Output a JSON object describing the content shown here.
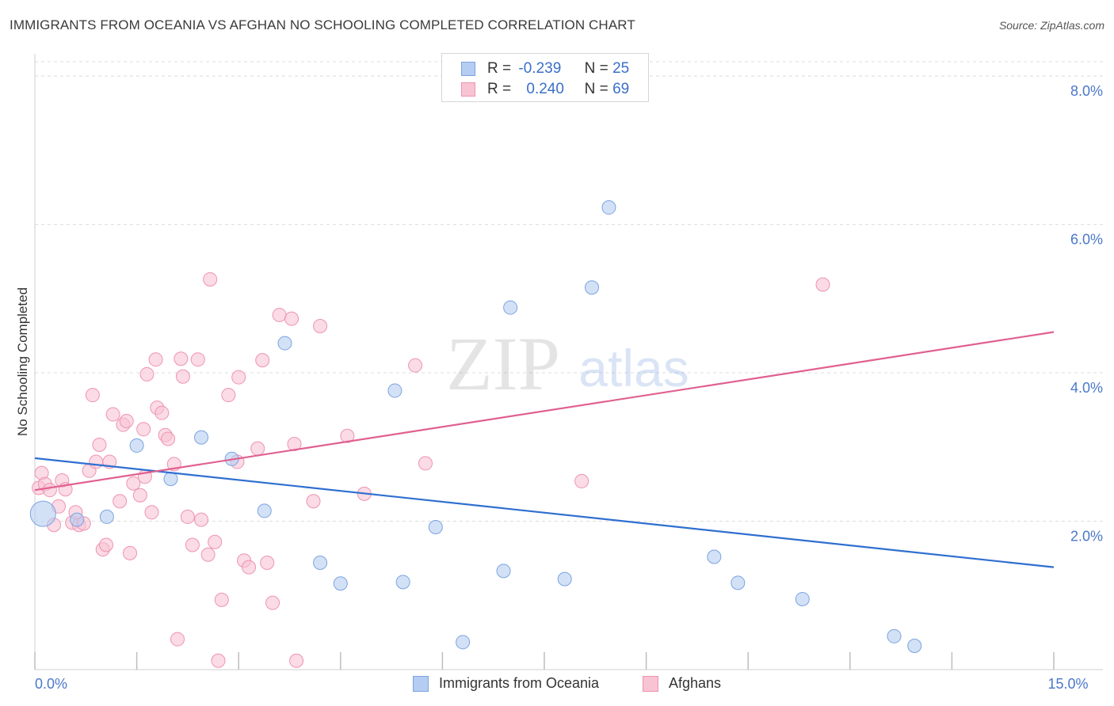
{
  "title": "IMMIGRANTS FROM OCEANIA VS AFGHAN NO SCHOOLING COMPLETED CORRELATION CHART",
  "source": "Source: ZipAtlas.com",
  "watermark": {
    "zip": "ZIP",
    "atlas": "atlas"
  },
  "colors": {
    "blue_fill": "#b5cdf2",
    "blue_stroke": "#7aa4e0",
    "blue_line": "#2f6fd0",
    "pink_fill": "#f8c3d3",
    "pink_stroke": "#ee94b0",
    "pink_line": "#e06090",
    "accent_text": "#3a6fc8"
  },
  "legend_top": [
    {
      "r_label": "R =",
      "r_value": "-0.239",
      "n_label": "N =",
      "n_value": "25"
    },
    {
      "r_label": "R =",
      "r_value": "0.240",
      "n_label": "N =",
      "n_value": "69"
    }
  ],
  "legend_bottom": [
    {
      "label": "Immigrants from Oceania"
    },
    {
      "label": "Afghans"
    }
  ],
  "chart_data": {
    "type": "scatter",
    "title": "IMMIGRANTS FROM OCEANIA VS AFGHAN NO SCHOOLING COMPLETED CORRELATION CHART",
    "xlabel": "",
    "ylabel": "No Schooling Completed",
    "xlim": [
      0,
      15
    ],
    "ylim": [
      0,
      8.3
    ],
    "x_ticks": [
      0,
      1.5,
      3,
      4.5,
      6,
      7.5,
      9,
      10.5,
      12,
      13.5,
      15
    ],
    "x_tick_labels": [
      {
        "x": 0,
        "label": "0.0%"
      },
      {
        "x": 15,
        "label": "15.0%"
      }
    ],
    "y_ticks": [
      {
        "y": 2,
        "label": "2.0%"
      },
      {
        "y": 4,
        "label": "4.0%"
      },
      {
        "y": 6,
        "label": "6.0%"
      },
      {
        "y": 8,
        "label": "8.0%"
      }
    ],
    "grid": "dashed-horizontal",
    "series": [
      {
        "name": "Immigrants from Oceania",
        "color": "blue",
        "trend": {
          "x": [
            0,
            15
          ],
          "y": [
            2.85,
            1.38
          ]
        },
        "points": [
          {
            "x": 0.12,
            "y": 2.1,
            "big": true
          },
          {
            "x": 0.62,
            "y": 2.02
          },
          {
            "x": 1.06,
            "y": 2.06
          },
          {
            "x": 1.5,
            "y": 3.02
          },
          {
            "x": 2.0,
            "y": 2.57
          },
          {
            "x": 2.45,
            "y": 3.13
          },
          {
            "x": 2.9,
            "y": 2.84
          },
          {
            "x": 3.38,
            "y": 2.14
          },
          {
            "x": 3.68,
            "y": 4.4
          },
          {
            "x": 4.2,
            "y": 1.44
          },
          {
            "x": 4.5,
            "y": 1.16
          },
          {
            "x": 5.3,
            "y": 3.76
          },
          {
            "x": 5.42,
            "y": 1.18
          },
          {
            "x": 5.9,
            "y": 1.92
          },
          {
            "x": 6.3,
            "y": 0.37
          },
          {
            "x": 6.9,
            "y": 1.33
          },
          {
            "x": 7.0,
            "y": 4.88
          },
          {
            "x": 7.8,
            "y": 1.22
          },
          {
            "x": 8.2,
            "y": 5.15
          },
          {
            "x": 8.45,
            "y": 6.23
          },
          {
            "x": 10.0,
            "y": 1.52
          },
          {
            "x": 10.35,
            "y": 1.17
          },
          {
            "x": 11.3,
            "y": 0.95
          },
          {
            "x": 12.65,
            "y": 0.45
          },
          {
            "x": 12.95,
            "y": 0.32
          }
        ]
      },
      {
        "name": "Afghans",
        "color": "pink",
        "trend": {
          "x": [
            0,
            15
          ],
          "y": [
            2.42,
            4.55
          ]
        },
        "points": [
          {
            "x": 0.06,
            "y": 2.45
          },
          {
            "x": 0.1,
            "y": 2.65
          },
          {
            "x": 0.15,
            "y": 2.5
          },
          {
            "x": 0.22,
            "y": 2.42
          },
          {
            "x": 0.28,
            "y": 1.95
          },
          {
            "x": 0.35,
            "y": 2.2
          },
          {
            "x": 0.4,
            "y": 2.55
          },
          {
            "x": 0.45,
            "y": 2.43
          },
          {
            "x": 0.55,
            "y": 1.98
          },
          {
            "x": 0.6,
            "y": 2.12
          },
          {
            "x": 0.65,
            "y": 1.95
          },
          {
            "x": 0.72,
            "y": 1.97
          },
          {
            "x": 0.8,
            "y": 2.68
          },
          {
            "x": 0.85,
            "y": 3.7
          },
          {
            "x": 0.9,
            "y": 2.8
          },
          {
            "x": 0.95,
            "y": 3.03
          },
          {
            "x": 1.0,
            "y": 1.62
          },
          {
            "x": 1.05,
            "y": 1.68
          },
          {
            "x": 1.1,
            "y": 2.8
          },
          {
            "x": 1.15,
            "y": 3.44
          },
          {
            "x": 1.25,
            "y": 2.27
          },
          {
            "x": 1.3,
            "y": 3.3
          },
          {
            "x": 1.35,
            "y": 3.35
          },
          {
            "x": 1.4,
            "y": 1.57
          },
          {
            "x": 1.45,
            "y": 2.51
          },
          {
            "x": 1.55,
            "y": 2.35
          },
          {
            "x": 1.6,
            "y": 3.24
          },
          {
            "x": 1.62,
            "y": 2.6
          },
          {
            "x": 1.65,
            "y": 3.98
          },
          {
            "x": 1.72,
            "y": 2.12
          },
          {
            "x": 1.78,
            "y": 4.18
          },
          {
            "x": 1.8,
            "y": 3.53
          },
          {
            "x": 1.87,
            "y": 3.46
          },
          {
            "x": 1.92,
            "y": 3.16
          },
          {
            "x": 1.96,
            "y": 3.11
          },
          {
            "x": 2.05,
            "y": 2.77
          },
          {
            "x": 2.1,
            "y": 0.41
          },
          {
            "x": 2.15,
            "y": 4.19
          },
          {
            "x": 2.18,
            "y": 3.95
          },
          {
            "x": 2.25,
            "y": 2.06
          },
          {
            "x": 2.32,
            "y": 1.68
          },
          {
            "x": 2.4,
            "y": 4.18
          },
          {
            "x": 2.45,
            "y": 2.02
          },
          {
            "x": 2.55,
            "y": 1.55
          },
          {
            "x": 2.58,
            "y": 5.26
          },
          {
            "x": 2.65,
            "y": 1.72
          },
          {
            "x": 2.7,
            "y": 0.12
          },
          {
            "x": 2.75,
            "y": 0.94
          },
          {
            "x": 2.85,
            "y": 3.7
          },
          {
            "x": 2.98,
            "y": 2.8
          },
          {
            "x": 3.0,
            "y": 3.94
          },
          {
            "x": 3.08,
            "y": 1.47
          },
          {
            "x": 3.15,
            "y": 1.38
          },
          {
            "x": 3.28,
            "y": 2.98
          },
          {
            "x": 3.35,
            "y": 4.17
          },
          {
            "x": 3.42,
            "y": 1.44
          },
          {
            "x": 3.5,
            "y": 0.9
          },
          {
            "x": 3.6,
            "y": 4.78
          },
          {
            "x": 3.78,
            "y": 4.73
          },
          {
            "x": 3.82,
            "y": 3.04
          },
          {
            "x": 3.85,
            "y": 0.12
          },
          {
            "x": 4.1,
            "y": 2.27
          },
          {
            "x": 4.2,
            "y": 4.63
          },
          {
            "x": 4.6,
            "y": 3.15
          },
          {
            "x": 4.85,
            "y": 2.37
          },
          {
            "x": 5.6,
            "y": 4.1
          },
          {
            "x": 5.75,
            "y": 2.78
          },
          {
            "x": 8.05,
            "y": 2.54
          },
          {
            "x": 11.6,
            "y": 5.19
          }
        ]
      }
    ]
  }
}
